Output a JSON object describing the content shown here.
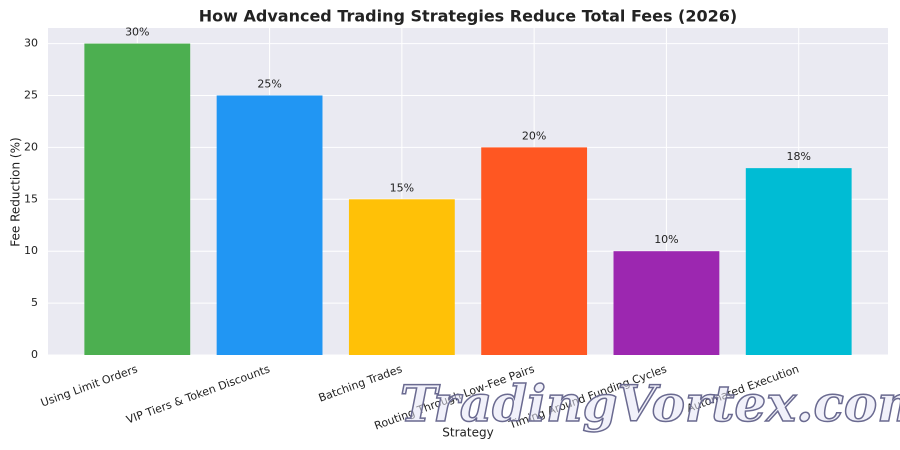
{
  "chart_data": {
    "type": "bar",
    "title": "How Advanced Trading Strategies Reduce Total Fees (2026)",
    "x_label": "Strategy",
    "y_label": "Fee Reduction (%)",
    "categories": [
      "Using Limit Orders",
      "VIP Tiers & Token Discounts",
      "Batching Trades",
      "Routing Through Low-Fee Pairs",
      "Timing Around Funding Cycles",
      "Automated Execution"
    ],
    "values": [
      30,
      25,
      15,
      20,
      10,
      18
    ],
    "value_labels": [
      "30%",
      "25%",
      "15%",
      "20%",
      "10%",
      "18%"
    ],
    "colors": [
      "#4caf50",
      "#2196f3",
      "#ffc107",
      "#ff5722",
      "#9c27b0",
      "#00bcd4"
    ],
    "ylim": [
      0,
      31.5
    ],
    "yticks": [
      0,
      5,
      10,
      15,
      20,
      25,
      30
    ],
    "grid": true,
    "watermark": "TradingVortex.com"
  }
}
